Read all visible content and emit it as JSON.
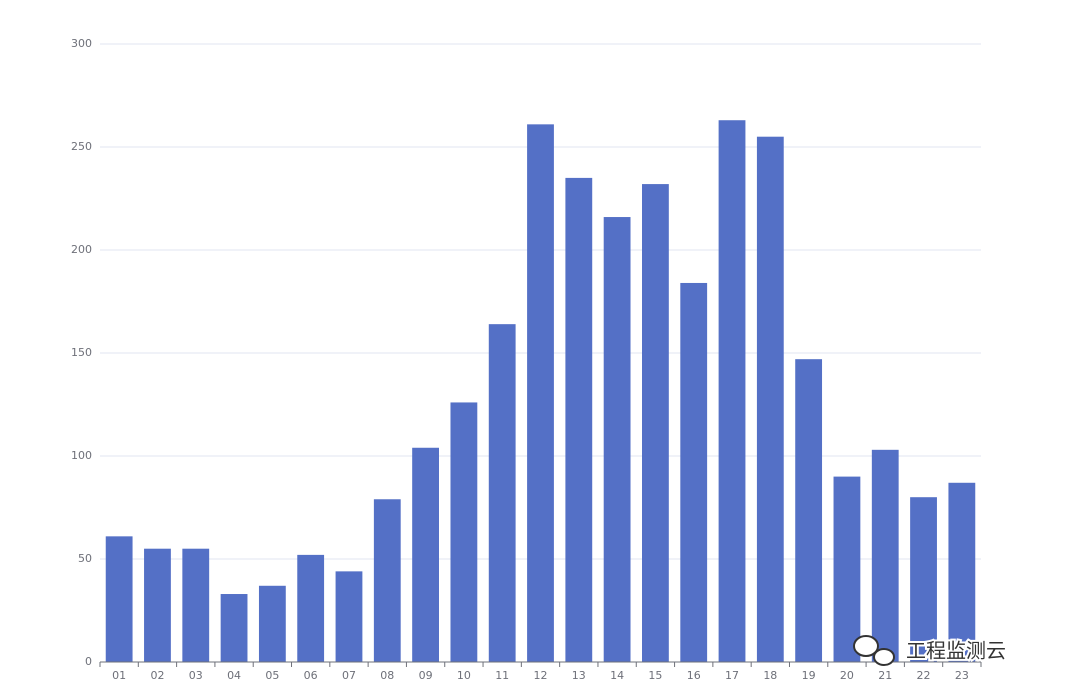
{
  "chart_data": {
    "type": "bar",
    "categories": [
      "01",
      "02",
      "03",
      "04",
      "05",
      "06",
      "07",
      "08",
      "09",
      "10",
      "11",
      "12",
      "13",
      "14",
      "15",
      "16",
      "17",
      "18",
      "19",
      "20",
      "21",
      "22",
      "23"
    ],
    "values": [
      61,
      55,
      55,
      33,
      37,
      52,
      44,
      79,
      104,
      126,
      164,
      261,
      235,
      216,
      232,
      184,
      263,
      255,
      147,
      90,
      103,
      80,
      87
    ],
    "color": "#5470c6",
    "ylim": [
      0,
      300
    ],
    "yticks": [
      0,
      50,
      100,
      150,
      200,
      250,
      300
    ],
    "grid": true
  },
  "watermark": "工程监测云"
}
